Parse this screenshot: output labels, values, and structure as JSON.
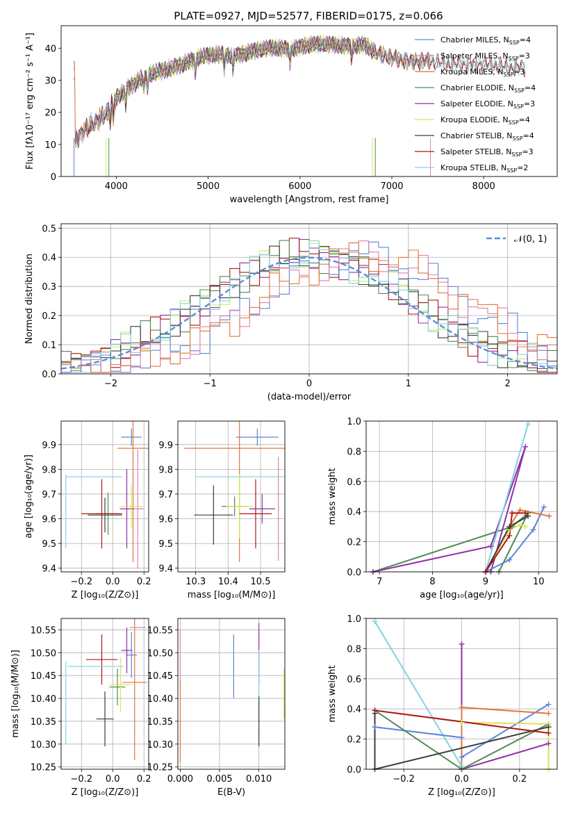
{
  "colors": {
    "chabrier_miles": "#5b86d6",
    "salpeter_miles": "#e27fa7",
    "kroupa_miles": "#cc7a1a",
    "chabrier_elodie": "#4f8a55",
    "salpeter_elodie": "#8e2fa8",
    "kroupa_elodie": "#d7e65a",
    "chabrier_stelib": "#3b3b3b",
    "salpeter_stelib": "#b01515",
    "kroupa_stelib": "#7fd4df",
    "gauss": "#5b8ed6",
    "orange": "#e0763a"
  },
  "chart_data": [
    {
      "id": "spectrum",
      "type": "line",
      "title": "PLATE=0927, MJD=52577, FIBERID=0175, z=0.066",
      "xlabel": "wavelength [Angstrom, rest frame]",
      "ylabel": "Flux [fλ10⁻¹⁷ erg cm⁻² s⁻¹ A⁻¹]",
      "xlim": [
        3400,
        8800
      ],
      "ylim": [
        0,
        47
      ],
      "xticks": [
        "4000",
        "5000",
        "6000",
        "7000",
        "8000"
      ],
      "xtick_values": [
        4000,
        5000,
        6000,
        7000,
        8000
      ],
      "yticks": [
        "0",
        "10",
        "20",
        "30",
        "40"
      ],
      "ytick_values": [
        0,
        10,
        20,
        30,
        40
      ],
      "legend": [
        {
          "label": "Chabrier MILES, N",
          "sub": "SSP",
          "val": "=4",
          "color": "chabrier_miles"
        },
        {
          "label": "Salpeter MILES, N",
          "sub": "SSP",
          "val": "=3",
          "color": "salpeter_miles"
        },
        {
          "label": "Kroupa MILES, N",
          "sub": "SSP",
          "val": "=3",
          "color": "kroupa_miles"
        },
        {
          "label": "Chabrier ELODIE, N",
          "sub": "SSP",
          "val": "=4",
          "color": "chabrier_elodie"
        },
        {
          "label": "Salpeter ELODIE, N",
          "sub": "SSP",
          "val": "=3",
          "color": "salpeter_elodie"
        },
        {
          "label": "Kroupa ELODIE, N",
          "sub": "SSP",
          "val": "=4",
          "color": "kroupa_elodie"
        },
        {
          "label": "Chabrier STELIB, N",
          "sub": "SSP",
          "val": "=4",
          "color": "chabrier_stelib"
        },
        {
          "label": "Salpeter STELIB, N",
          "sub": "SSP",
          "val": "=3",
          "color": "salpeter_stelib"
        },
        {
          "label": "Kroupa STELIB, N",
          "sub": "SSP",
          "val": "=2",
          "color": "kroupa_stelib"
        }
      ],
      "legend_position": "top-right",
      "spectrum_trend": [
        [
          3550,
          13
        ],
        [
          3700,
          17
        ],
        [
          3850,
          20
        ],
        [
          3950,
          24
        ],
        [
          4100,
          27
        ],
        [
          4300,
          31
        ],
        [
          4500,
          33
        ],
        [
          4700,
          35
        ],
        [
          4900,
          37
        ],
        [
          5100,
          38
        ],
        [
          5300,
          38
        ],
        [
          5500,
          39
        ],
        [
          5700,
          40
        ],
        [
          5900,
          40
        ],
        [
          6100,
          41
        ],
        [
          6300,
          41
        ],
        [
          6500,
          41
        ],
        [
          6700,
          41
        ],
        [
          6850,
          38
        ],
        [
          7000,
          37
        ],
        [
          7200,
          36
        ],
        [
          7400,
          36
        ],
        [
          7600,
          35
        ],
        [
          7800,
          35
        ],
        [
          8000,
          35
        ],
        [
          8300,
          34
        ],
        [
          8450,
          34
        ]
      ],
      "absorption_features": [
        3934,
        3968,
        4102,
        4300,
        4340,
        4861,
        5175,
        5270,
        5890,
        6563
      ]
    },
    {
      "id": "residuals",
      "type": "line",
      "xlabel": "(data-model)/error",
      "ylabel": "Normed distribution",
      "xlim": [
        -2.5,
        2.5
      ],
      "ylim": [
        0,
        0.515
      ],
      "xticks": [
        "−2",
        "−1",
        "0",
        "1",
        "2"
      ],
      "xtick_values": [
        -2,
        -1,
        0,
        1,
        2
      ],
      "yticks": [
        "0.0",
        "0.1",
        "0.2",
        "0.3",
        "0.4",
        "0.5"
      ],
      "ytick_values": [
        0,
        0.1,
        0.2,
        0.3,
        0.4,
        0.5
      ],
      "grid": true,
      "legend": [
        {
          "label": "𝒩(0, 1)",
          "color": "gauss"
        }
      ],
      "legend_position": "top-right",
      "hist_groups": [
        {
          "shift": 0.0,
          "colors": [
            "kroupa_elodie",
            "salpeter_elodie",
            "salpeter_stelib",
            "chabrier_elodie",
            "chabrier_stelib",
            "kroupa_stelib"
          ]
        },
        {
          "shift": 0.55,
          "colors": [
            "chabrier_miles",
            "salpeter_miles",
            "orange"
          ]
        }
      ]
    },
    {
      "id": "age_vs_Z",
      "type": "scatter",
      "xlabel": "Z [log₁₀(Z/Z⊙)]",
      "ylabel": "age  [log₁₀(age/yr)]",
      "xlim": [
        -0.33,
        0.23
      ],
      "ylim": [
        9.385,
        9.995
      ],
      "xticks": [
        "−0.2",
        "0.0",
        "0.2"
      ],
      "xtick_values": [
        -0.2,
        0.0,
        0.2
      ],
      "yticks": [
        "9.4",
        "9.5",
        "9.6",
        "9.7",
        "9.8",
        "9.9"
      ],
      "ytick_values": [
        9.4,
        9.5,
        9.6,
        9.7,
        9.8,
        9.9
      ],
      "points": [
        {
          "x": 0.12,
          "y": 9.93,
          "xerr": 0.065,
          "yerr": 0.035,
          "c": "chabrier_miles"
        },
        {
          "x": 0.16,
          "y": 9.64,
          "xerr": 0.04,
          "yerr": 0.24,
          "c": "salpeter_miles"
        },
        {
          "x": 0.13,
          "y": 9.885,
          "xerr": 0.1,
          "yerr": 0.46,
          "c": "orange"
        },
        {
          "x": -0.03,
          "y": 9.62,
          "xerr": 0.08,
          "yerr": 0.085,
          "c": "chabrier_elodie"
        },
        {
          "x": 0.09,
          "y": 9.64,
          "xerr": 0.045,
          "yerr": 0.16,
          "c": "salpeter_elodie"
        },
        {
          "x": 0.12,
          "y": 9.65,
          "xerr": 0.07,
          "yerr": 0.09,
          "c": "kroupa_elodie"
        },
        {
          "x": -0.05,
          "y": 9.615,
          "xerr": 0.11,
          "yerr": 0.07,
          "c": "chabrier_stelib"
        },
        {
          "x": -0.07,
          "y": 9.62,
          "xerr": 0.13,
          "yerr": 0.14,
          "c": "salpeter_stelib"
        },
        {
          "x": -0.3,
          "y": 9.63,
          "xerr": 0.0,
          "yerr": 0.15,
          "c": "kroupa_stelib"
        },
        {
          "x": -0.12,
          "y": 9.77,
          "xerr": 0.18,
          "yerr": 0.0,
          "c": "kroupa_stelib"
        }
      ]
    },
    {
      "id": "age_vs_mass",
      "type": "scatter",
      "xlabel": "mass [log₁₀(M/M⊙)]",
      "ylabel": "",
      "xlim": [
        10.245,
        10.575
      ],
      "ylim": [
        9.385,
        9.995
      ],
      "xticks": [
        "10.3",
        "10.4",
        "10.5"
      ],
      "xtick_values": [
        10.3,
        10.4,
        10.5
      ],
      "yticks": [
        "9.4",
        "9.5",
        "9.6",
        "9.7",
        "9.8",
        "9.9"
      ],
      "ytick_values": [
        9.4,
        9.5,
        9.6,
        9.7,
        9.8,
        9.9
      ],
      "points": [
        {
          "x": 10.49,
          "y": 9.93,
          "xerr": 0.065,
          "yerr": 0.035,
          "c": "chabrier_miles"
        },
        {
          "x": 10.555,
          "y": 9.64,
          "xerr": 0.0,
          "yerr": 0.21,
          "c": "salpeter_miles"
        },
        {
          "x": 10.435,
          "y": 9.885,
          "xerr": 0.17,
          "yerr": 0.46,
          "c": "orange"
        },
        {
          "x": 10.42,
          "y": 9.65,
          "xerr": 0.04,
          "yerr": 0.04,
          "c": "chabrier_elodie"
        },
        {
          "x": 10.505,
          "y": 9.64,
          "xerr": 0.04,
          "yerr": 0.06,
          "c": "salpeter_elodie"
        },
        {
          "x": 10.435,
          "y": 9.65,
          "xerr": 0.04,
          "yerr": 0.13,
          "c": "kroupa_elodie"
        },
        {
          "x": 10.355,
          "y": 9.615,
          "xerr": 0.06,
          "yerr": 0.12,
          "c": "chabrier_stelib"
        },
        {
          "x": 10.485,
          "y": 9.62,
          "xerr": 0.05,
          "yerr": 0.14,
          "c": "salpeter_stelib"
        },
        {
          "x": 10.47,
          "y": 9.77,
          "xerr": 0.17,
          "yerr": 0.0,
          "c": "kroupa_stelib"
        }
      ]
    },
    {
      "id": "weight_vs_age",
      "type": "line",
      "xlabel": "age  [log₁₀(age/yr)]",
      "ylabel": "mass weight",
      "xlim": [
        6.75,
        10.35
      ],
      "ylim": [
        0,
        1.0
      ],
      "xticks": [
        "7",
        "8",
        "9",
        "10"
      ],
      "xtick_values": [
        7,
        8,
        9,
        10
      ],
      "yticks": [
        "0.0",
        "0.2",
        "0.4",
        "0.6",
        "0.8",
        "1.0"
      ],
      "ytick_values": [
        0,
        0.2,
        0.4,
        0.6,
        0.8,
        1.0
      ],
      "grid": true,
      "series": [
        {
          "c": "chabrier_elodie",
          "pts": [
            [
              6.88,
              0.0
            ],
            [
              9.5,
              0.3
            ],
            [
              9.8,
              0.39
            ],
            [
              9.25,
              0.0
            ]
          ]
        },
        {
          "c": "salpeter_elodie",
          "pts": [
            [
              6.88,
              0.0
            ],
            [
              9.1,
              0.17
            ],
            [
              9.75,
              0.83
            ],
            [
              9.1,
              0.0
            ]
          ]
        },
        {
          "c": "kroupa_stelib",
          "pts": [
            [
              9.0,
              0.0
            ],
            [
              9.8,
              0.98
            ]
          ]
        },
        {
          "c": "chabrier_miles",
          "pts": [
            [
              9.0,
              0.0
            ],
            [
              9.45,
              0.08
            ],
            [
              9.9,
              0.28
            ],
            [
              10.1,
              0.43
            ]
          ]
        },
        {
          "c": "orange",
          "pts": [
            [
              9.0,
              0.0
            ],
            [
              9.45,
              0.3
            ],
            [
              9.65,
              0.41
            ],
            [
              10.2,
              0.37
            ]
          ]
        },
        {
          "c": "kroupa_elodie",
          "pts": [
            [
              9.0,
              0.0
            ],
            [
              9.45,
              0.28
            ],
            [
              9.65,
              0.31
            ],
            [
              9.75,
              0.3
            ]
          ]
        },
        {
          "c": "chabrier_stelib",
          "pts": [
            [
              9.0,
              0.0
            ],
            [
              9.45,
              0.3
            ],
            [
              9.8,
              0.37
            ]
          ]
        },
        {
          "c": "salpeter_stelib",
          "pts": [
            [
              9.0,
              0.0
            ],
            [
              9.45,
              0.24
            ],
            [
              9.5,
              0.39
            ],
            [
              9.75,
              0.39
            ]
          ]
        }
      ]
    },
    {
      "id": "mass_vs_Z",
      "type": "scatter",
      "xlabel": "Z [log₁₀(Z/Z⊙)]",
      "ylabel": "mass [log₁₀(M/M⊙)]",
      "xlim": [
        -0.33,
        0.23
      ],
      "ylim": [
        10.245,
        10.575
      ],
      "xticks": [
        "−0.2",
        "0.0",
        "0.2"
      ],
      "xtick_values": [
        -0.2,
        0.0,
        0.2
      ],
      "yticks": [
        "10.25",
        "10.30",
        "10.35",
        "10.40",
        "10.45",
        "10.50",
        "10.55"
      ],
      "ytick_values": [
        10.25,
        10.3,
        10.35,
        10.4,
        10.45,
        10.5,
        10.55
      ],
      "points": [
        {
          "x": 0.12,
          "y": 10.495,
          "xerr": 0.035,
          "yerr": 0.05,
          "c": "chabrier_miles"
        },
        {
          "x": 0.16,
          "y": 10.555,
          "xerr": 0.05,
          "yerr": 0.0,
          "c": "salpeter_miles"
        },
        {
          "x": 0.14,
          "y": 10.435,
          "xerr": 0.08,
          "yerr": 0.17,
          "c": "orange"
        },
        {
          "x": 0.03,
          "y": 10.425,
          "xerr": 0.05,
          "yerr": 0.04,
          "c": "chabrier_elodie"
        },
        {
          "x": 0.09,
          "y": 10.505,
          "xerr": 0.035,
          "yerr": 0.05,
          "c": "salpeter_elodie"
        },
        {
          "x": 0.05,
          "y": 10.43,
          "xerr": 0.07,
          "yerr": 0.06,
          "c": "kroupa_elodie"
        },
        {
          "x": -0.05,
          "y": 10.355,
          "xerr": 0.055,
          "yerr": 0.06,
          "c": "chabrier_stelib"
        },
        {
          "x": -0.07,
          "y": 10.485,
          "xerr": 0.1,
          "yerr": 0.055,
          "c": "salpeter_stelib"
        },
        {
          "x": -0.11,
          "y": 10.47,
          "xerr": 0.18,
          "yerr": 0.0,
          "c": "kroupa_stelib"
        },
        {
          "x": -0.3,
          "y": 10.39,
          "xerr": 0.0,
          "yerr": 0.09,
          "c": "kroupa_stelib"
        }
      ]
    },
    {
      "id": "mass_vs_ebv",
      "type": "scatter",
      "xlabel": "E(B-V)",
      "ylabel": "",
      "xlim": [
        -0.0003,
        0.0133
      ],
      "ylim": [
        10.245,
        10.575
      ],
      "xticks": [
        "0.000",
        "0.005",
        "0.010"
      ],
      "xtick_values": [
        0,
        0.005,
        0.01
      ],
      "yticks": [
        "10.25",
        "10.30",
        "10.35",
        "10.40",
        "10.45",
        "10.50",
        "10.55"
      ],
      "ytick_values": [
        10.25,
        10.3,
        10.35,
        10.4,
        10.45,
        10.5,
        10.55
      ],
      "points": [
        {
          "x": 0.0,
          "y": 10.49,
          "xerr": 0.0,
          "yerr": 0.06,
          "c": "salpeter_miles"
        },
        {
          "x": 0.0,
          "y": 10.35,
          "xerr": 0.0,
          "yerr": 0.09,
          "c": "orange"
        },
        {
          "x": 0.0068,
          "y": 10.47,
          "xerr": 0.0,
          "yerr": 0.07,
          "c": "chabrier_miles"
        },
        {
          "x": 0.01,
          "y": 10.535,
          "xerr": 0.0,
          "yerr": 0.03,
          "c": "salpeter_elodie"
        },
        {
          "x": 0.01,
          "y": 10.465,
          "xerr": 0.0,
          "yerr": 0.035,
          "c": "salpeter_stelib"
        },
        {
          "x": 0.01,
          "y": 10.4,
          "xerr": 0.0,
          "yerr": 0.1,
          "c": "kroupa_stelib"
        },
        {
          "x": 0.01,
          "y": 10.35,
          "xerr": 0.0,
          "yerr": 0.055,
          "c": "chabrier_stelib"
        },
        {
          "x": 0.0132,
          "y": 10.41,
          "xerr": 0.0,
          "yerr": 0.055,
          "c": "kroupa_elodie"
        }
      ]
    },
    {
      "id": "weight_vs_Z",
      "type": "line",
      "xlabel": "Z [log₁₀(Z/Z⊙)]",
      "ylabel": "mass weight",
      "xlim": [
        -0.33,
        0.33
      ],
      "ylim": [
        0,
        1.0
      ],
      "xticks": [
        "−0.2",
        "0.0",
        "0.2"
      ],
      "xtick_values": [
        -0.2,
        0.0,
        0.2
      ],
      "yticks": [
        "0.0",
        "0.2",
        "0.4",
        "0.6",
        "0.8",
        "1.0"
      ],
      "ytick_values": [
        0,
        0.2,
        0.4,
        0.6,
        0.8,
        1.0
      ],
      "grid": true,
      "series": [
        {
          "c": "kroupa_stelib",
          "pts": [
            [
              -0.3,
              0.98
            ],
            [
              0.0,
              0.02
            ]
          ]
        },
        {
          "c": "salpeter_elodie",
          "pts": [
            [
              0.0,
              0.83
            ],
            [
              0.0,
              0.0
            ],
            [
              0.3,
              0.17
            ]
          ]
        },
        {
          "c": "chabrier_miles",
          "pts": [
            [
              -0.3,
              0.28
            ],
            [
              0.0,
              0.21
            ],
            [
              0.0,
              0.08
            ],
            [
              0.3,
              0.43
            ]
          ]
        },
        {
          "c": "orange",
          "pts": [
            [
              0.0,
              0.0
            ],
            [
              0.0,
              0.41
            ],
            [
              0.3,
              0.37
            ]
          ]
        },
        {
          "c": "chabrier_elodie",
          "pts": [
            [
              -0.3,
              0.39
            ],
            [
              0.0,
              0.0
            ],
            [
              0.3,
              0.3
            ]
          ]
        },
        {
          "c": "kroupa_elodie",
          "pts": [
            [
              0.0,
              0.31
            ],
            [
              0.3,
              0.3
            ],
            [
              0.3,
              0.0
            ]
          ]
        },
        {
          "c": "chabrier_stelib",
          "pts": [
            [
              -0.3,
              0.37
            ],
            [
              -0.3,
              0.0
            ],
            [
              0.3,
              0.28
            ]
          ]
        },
        {
          "c": "salpeter_stelib",
          "pts": [
            [
              -0.3,
              0.39
            ],
            [
              0.3,
              0.24
            ]
          ]
        }
      ]
    }
  ]
}
